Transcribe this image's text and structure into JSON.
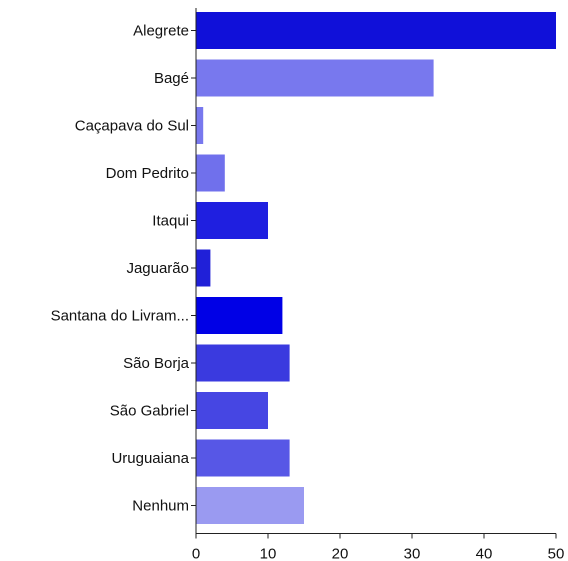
{
  "chart_data": {
    "type": "bar",
    "orientation": "horizontal",
    "categories": [
      "Alegrete",
      "Bagé",
      "Caçapava do Sul",
      "Dom Pedrito",
      "Itaqui",
      "Jaguarão",
      "Santana do Livram...",
      "São Borja",
      "São Gabriel",
      "Uruguaiana",
      "Nenhum"
    ],
    "values": [
      50,
      33,
      1,
      4,
      10,
      2,
      12,
      13,
      10,
      13,
      15
    ],
    "colors": [
      "#1010d9",
      "#7878ee",
      "#7878ee",
      "#7070ec",
      "#1f1fe0",
      "#2020d8",
      "#0000e6",
      "#3a3adf",
      "#4646e3",
      "#5757e6",
      "#9a9af1"
    ],
    "xlim": [
      0,
      50
    ],
    "xticks": [
      0,
      10,
      20,
      30,
      40,
      50
    ],
    "grid": false,
    "legend": "none"
  }
}
